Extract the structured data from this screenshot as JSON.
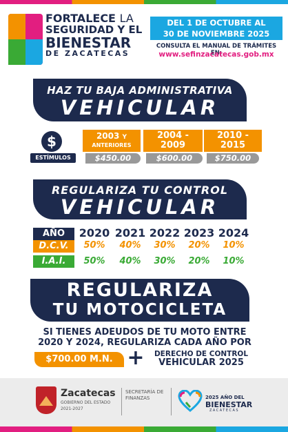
{
  "header": {
    "title_line1_bold": "FORTALECE",
    "title_line1_light": "LA",
    "title_line2": "SEGURIDAD Y EL",
    "title_line3": "BIENESTAR",
    "title_line4": "DE ZACATECAS",
    "date_line1": "DEL 1 DE OCTUBRE AL",
    "date_line2": "30 DE NOVIEMBRE 2025",
    "manual_text": "CONSULTA EL MANUAL DE TRÁMITES EN:",
    "url": "www.sefinzacatecas.gob.mx"
  },
  "baja": {
    "subtitle": "HAZ TU BAJA ADMINISTRATIVA",
    "title": "VEHICULAR",
    "dollar": "$",
    "stimulus_label": "ESTÍMULOS",
    "tiers": [
      {
        "years_a": "2003",
        "years_b": "Y",
        "years_c": "ANTERIORES",
        "price": "$450.00"
      },
      {
        "years_a": "2004 -",
        "years_b": "2009",
        "price": "$600.00"
      },
      {
        "years_a": "2010 -",
        "years_b": "2015",
        "price": "$750.00"
      }
    ]
  },
  "control": {
    "subtitle": "REGULARIZA TU CONTROL",
    "title": "VEHICULAR",
    "row_labels": {
      "year": "AÑO",
      "dcv": "D.C.V.",
      "iai": "I.A.I."
    },
    "years": [
      "2020",
      "2021",
      "2022",
      "2023",
      "2024"
    ],
    "dcv": [
      "50%",
      "40%",
      "30%",
      "20%",
      "10%"
    ],
    "iai": [
      "50%",
      "40%",
      "30%",
      "20%",
      "10%"
    ]
  },
  "moto": {
    "title_line1": "REGULARIZA",
    "title_line2": "TU MOTOCICLETA",
    "text_line1": "SI TIENES ADEUDOS DE TU MOTO ENTRE",
    "text_line2": "2020 Y 2024, REGULARIZA CADA AÑO POR",
    "amount": "$700.00 M.N.",
    "plus": "+",
    "derecho_line1": "DERECHO DE CONTROL",
    "derecho_line2": "VEHICULAR 2025"
  },
  "footer": {
    "state": "Zacatecas",
    "gov": "GOBIERNO DEL ESTADO",
    "period": "2021-2027",
    "secretaria_line1": "SECRETARÍA DE",
    "secretaria_line2": "FINANZAS",
    "year_line1": "2025 AÑO DEL",
    "year_line2": "BIENESTAR",
    "year_line3": "ZACATECAS"
  },
  "colors": {
    "navy": "#1d2a4d",
    "orange": "#f39200",
    "green": "#3aaa35",
    "blue": "#1ba7e1",
    "magenta": "#e21e80",
    "gray": "#999999"
  }
}
